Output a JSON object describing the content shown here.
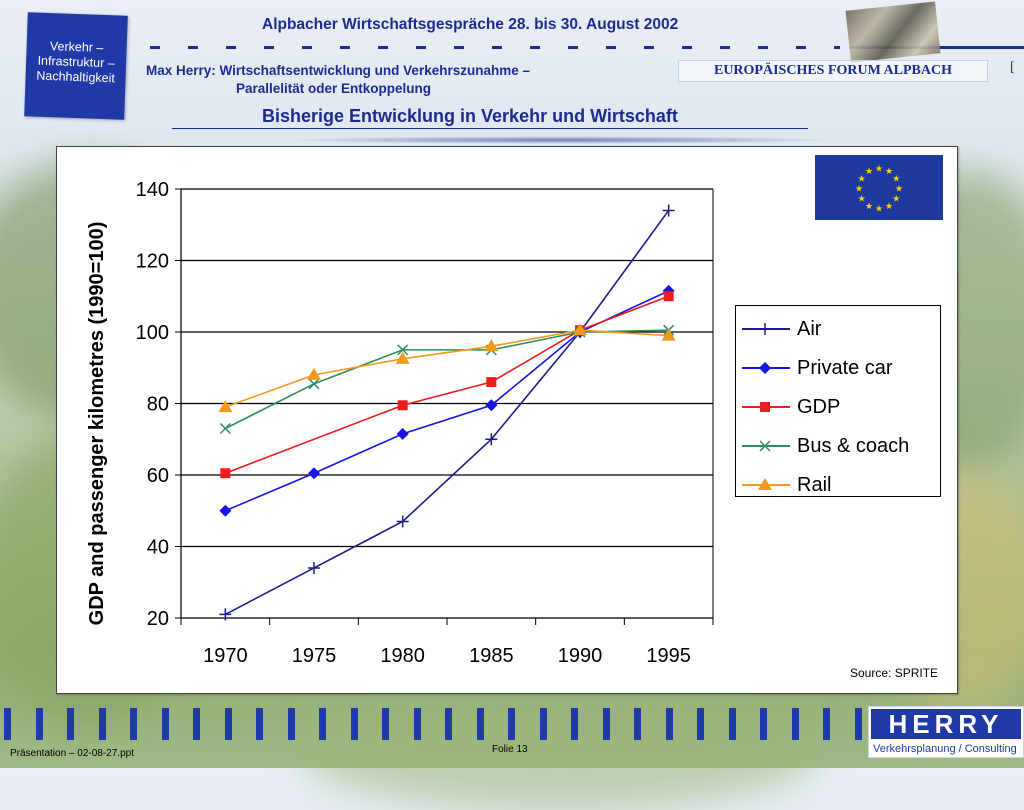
{
  "header": {
    "corner_box_lines": [
      "Verkehr –",
      "Infrastruktur –",
      "Nachhaltigkeit"
    ],
    "conference_title": "Alpbacher Wirtschaftsgespräche 28. bis 30. August 2002",
    "talk_title_line1": "Max Herry: Wirtschaftsentwicklung und Verkehrszunahme –",
    "talk_title_line2": "Parallelität oder Entkoppelung",
    "forum_label": "EUROPÄISCHES FORUM ALPBACH",
    "forum_bracket": "[",
    "slide_heading": "Bisherige Entwicklung in Verkehr und Wirtschaft"
  },
  "chart_data": {
    "type": "line",
    "ylabel": "GDP and passenger kilometres (1990=100)",
    "xlabel": "",
    "ylim": [
      20,
      140
    ],
    "yticks": [
      20,
      40,
      60,
      80,
      100,
      120,
      140
    ],
    "x": [
      1970,
      1975,
      1980,
      1985,
      1990,
      1995
    ],
    "grid": true,
    "legend_position": "right",
    "series": [
      {
        "name": "Air",
        "color": "#1c1c8c",
        "marker": "plus",
        "points": [
          [
            1970,
            21
          ],
          [
            1975,
            34
          ],
          [
            1980,
            47
          ],
          [
            1985,
            70
          ],
          [
            1990,
            100
          ],
          [
            1995,
            134
          ]
        ]
      },
      {
        "name": "Private car",
        "color": "#1414e6",
        "marker": "diamond",
        "points": [
          [
            1970,
            50
          ],
          [
            1975,
            60.5
          ],
          [
            1980,
            71.5
          ],
          [
            1985,
            79.5
          ],
          [
            1990,
            100
          ],
          [
            1995,
            111.5
          ]
        ]
      },
      {
        "name": "GDP",
        "color": "#ee1c1c",
        "marker": "square",
        "points": [
          [
            1970,
            60.5
          ],
          [
            1980,
            79.5
          ],
          [
            1985,
            86
          ],
          [
            1990,
            100.5
          ],
          [
            1995,
            110
          ]
        ]
      },
      {
        "name": "Bus & coach",
        "color": "#2f8f5f",
        "marker": "x",
        "points": [
          [
            1970,
            73
          ],
          [
            1975,
            85.5
          ],
          [
            1980,
            95
          ],
          [
            1985,
            95
          ],
          [
            1990,
            100
          ],
          [
            1995,
            100.5
          ]
        ]
      },
      {
        "name": "Rail",
        "color": "#f29a1c",
        "marker": "triangle",
        "points": [
          [
            1970,
            79
          ],
          [
            1975,
            88
          ],
          [
            1980,
            92.5
          ],
          [
            1985,
            96
          ],
          [
            1990,
            100.5
          ],
          [
            1995,
            99
          ]
        ]
      }
    ]
  },
  "source_note": "Source: SPRITE",
  "logo": {
    "name": "HERRY",
    "tagline": "Verkehrsplanung / Consulting"
  },
  "footer": {
    "file_label": "Präsentation  – 02-08-27.ppt",
    "slide_label": "Folie 13"
  }
}
